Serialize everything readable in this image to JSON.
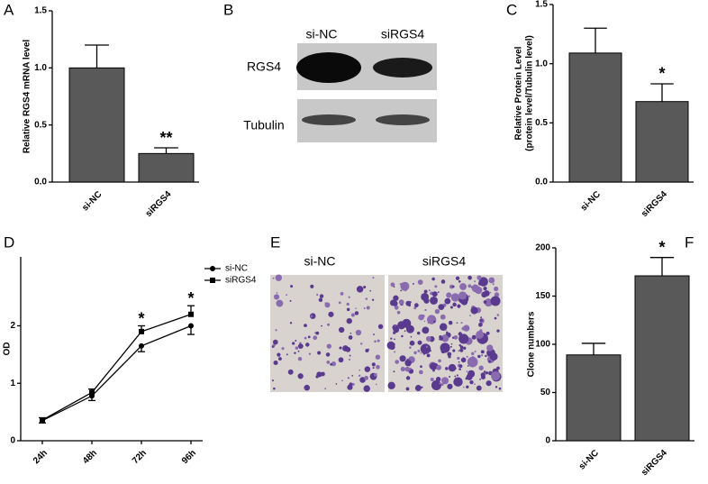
{
  "chart_data": [
    {
      "type": "bar",
      "panel": "A",
      "ylabel": [
        "Relative RGS4 mRNA level"
      ],
      "categories": [
        "si-NC",
        "siRGS4"
      ],
      "values": [
        1.0,
        0.25
      ],
      "errors": [
        0.2,
        0.05
      ],
      "color": "#595959",
      "ylim": [
        0,
        1.5
      ],
      "yticks": [
        {
          "value": 0,
          "label": "0.0"
        },
        {
          "value": 0.5,
          "label": "0.5"
        },
        {
          "value": 1,
          "label": "1.0"
        },
        {
          "value": 1.5,
          "label": "1.5"
        }
      ],
      "annotations": [
        {
          "at": "siRGS4",
          "text": "**"
        }
      ]
    },
    {
      "type": "blot",
      "panel": "B",
      "columns": [
        "si-NC",
        "siRGS4"
      ],
      "rows": [
        "RGS4",
        "Tubulin"
      ]
    },
    {
      "type": "bar",
      "panel": "C",
      "ylabel": [
        "Relative Protein Level",
        "(protein level/Tubulin level)"
      ],
      "categories": [
        "si-NC",
        "siRGS4"
      ],
      "values": [
        1.09,
        0.68
      ],
      "errors": [
        0.21,
        0.15
      ],
      "color": "#595959",
      "ylim": [
        0,
        1.5
      ],
      "yticks": [
        {
          "value": 0,
          "label": "0.0"
        },
        {
          "value": 0.5,
          "label": "0.5"
        },
        {
          "value": 1,
          "label": "1.0"
        },
        {
          "value": 1.5,
          "label": "1.5"
        }
      ],
      "annotations": [
        {
          "at": "siRGS4",
          "text": "*"
        }
      ]
    },
    {
      "type": "line",
      "panel": "D",
      "ylabel": [
        "OD"
      ],
      "categories": [
        "24h",
        "48h",
        "72h",
        "96h"
      ],
      "series": [
        {
          "name": "si-NC",
          "color": "#000000",
          "marker": "circle",
          "values": [
            0.35,
            0.78,
            1.65,
            2.0
          ],
          "errors": [
            0.04,
            0.08,
            0.1,
            0.15
          ]
        },
        {
          "name": "siRGS4",
          "color": "#000000",
          "marker": "square",
          "values": [
            0.36,
            0.84,
            1.9,
            2.2
          ],
          "errors": [
            0.04,
            0.06,
            0.1,
            0.15
          ]
        }
      ],
      "ylim": [
        0,
        3.2
      ],
      "yticks": [
        0,
        1,
        2
      ],
      "annotations": [
        {
          "at": "72h",
          "text": "*"
        },
        {
          "at": "96h",
          "text": "*"
        }
      ]
    },
    {
      "type": "image",
      "panel": "E",
      "columns": [
        "si-NC",
        "siRGS4"
      ]
    },
    {
      "type": "bar",
      "panel": "F",
      "ylabel": [
        "Clone numbers"
      ],
      "categories": [
        "si-NC",
        "siRGS4"
      ],
      "values": [
        89,
        171
      ],
      "errors": [
        12,
        19
      ],
      "color": "#595959",
      "ylim": [
        0,
        200
      ],
      "yticks": [
        0,
        50,
        100,
        150,
        200
      ],
      "annotations": [
        {
          "at": "siRGS4",
          "text": "*"
        }
      ]
    }
  ]
}
